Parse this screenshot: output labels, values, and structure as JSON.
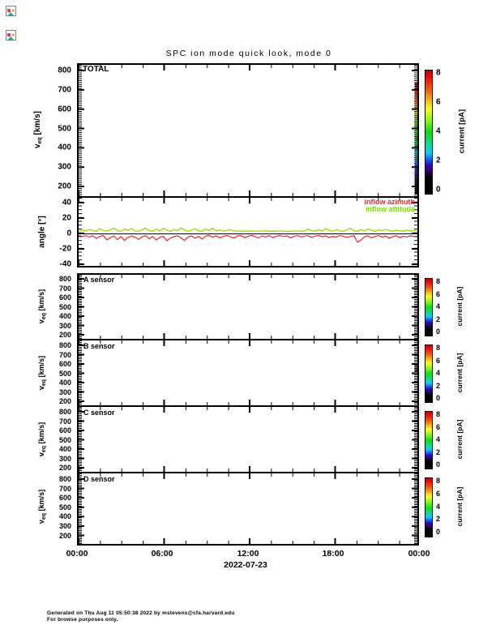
{
  "title": "SPC ion mode quick look, mode 0",
  "corner_icons": [
    "broken-image",
    "broken-image"
  ],
  "xaxis": {
    "tick_labels": [
      "00:00",
      "06:00",
      "12:00",
      "18:00",
      "00:00"
    ],
    "date_label": "2022-07-23"
  },
  "yaxis_velocity": {
    "label_pre": "v",
    "label_sub": "eq",
    "label_post": " [km/s]",
    "ticks": [
      "800",
      "700",
      "600",
      "500",
      "400",
      "300",
      "200"
    ]
  },
  "angle_axis": {
    "label": "angle [°]",
    "ticks": [
      "40",
      "20",
      "0",
      "-20",
      "-40"
    ]
  },
  "colorbar": {
    "label": "current [pA]",
    "ticks": [
      "8",
      "6",
      "4",
      "2",
      "0"
    ],
    "min": 0,
    "max": 8,
    "gradient_top_to_bottom": [
      {
        "pct": 0,
        "color": "#cc0000"
      },
      {
        "pct": 5,
        "color": "#ff0000"
      },
      {
        "pct": 17,
        "color": "#ff6600"
      },
      {
        "pct": 26,
        "color": "#ffcc00"
      },
      {
        "pct": 31,
        "color": "#ffff00"
      },
      {
        "pct": 40,
        "color": "#88ff00"
      },
      {
        "pct": 50,
        "color": "#00e400"
      },
      {
        "pct": 62,
        "color": "#00ddbb"
      },
      {
        "pct": 67,
        "color": "#00ccff"
      },
      {
        "pct": 72,
        "color": "#0066ff"
      },
      {
        "pct": 77,
        "color": "#3300cc"
      },
      {
        "pct": 82,
        "color": "#330066"
      },
      {
        "pct": 87,
        "color": "#000000"
      },
      {
        "pct": 100,
        "color": "#000000"
      }
    ]
  },
  "panels": {
    "total": {
      "label": "TOTAL"
    },
    "angle": {
      "legend": [
        {
          "label": "inflow azimuth",
          "color": "#ff2222"
        },
        {
          "label": "inflow attitude",
          "color": "#7ddf00"
        }
      ]
    },
    "sensors": [
      {
        "label": "A sensor"
      },
      {
        "label": "B sensor"
      },
      {
        "label": "C sensor"
      },
      {
        "label": "D sensor"
      }
    ]
  },
  "footer": {
    "line1": "Generated on Thu Aug 11 05:50:38 2022 by mstevens@cfa.harvard.edu",
    "line2": "For browse purposes only."
  },
  "chart_data": [
    {
      "id": "total",
      "type": "heatmap",
      "panel_label": "TOTAL",
      "ylabel": "veq [km/s]",
      "ylim": [
        150,
        850
      ],
      "x_range": [
        "00:00",
        "24:00"
      ],
      "color_variable": "current [pA]",
      "color_range": [
        0,
        8
      ],
      "values": [],
      "last_sample_edge_column": true
    },
    {
      "id": "angle",
      "type": "line",
      "ylabel": "angle [°]",
      "ylim": [
        -45,
        45
      ],
      "x_start_hours": 0,
      "x_step_hours": 0.25,
      "zero_line": true,
      "legend_position": "top-right",
      "series": [
        {
          "name": "inflow azimuth",
          "color": "#ff2222",
          "values": [
            -2.6,
            -3.9,
            -2.8,
            -4.6,
            -3.1,
            -6.4,
            -3.9,
            -2.7,
            -8.3,
            -5.4,
            -3.3,
            -7.9,
            -4.1,
            -9.2,
            -4.9,
            -3.5,
            -4.7,
            -7.6,
            -4.3,
            -2.8,
            -6.9,
            -4.0,
            -8.4,
            -5.1,
            -3.7,
            -9.5,
            -6.0,
            -4.2,
            -3.0,
            -5.8,
            -8.9,
            -4.5,
            -3.2,
            -6.1,
            -3.9,
            -7.2,
            -3.4,
            -2.5,
            -4.8,
            -3.1,
            -5.6,
            -3.8,
            -2.6,
            -4.3,
            -6.1,
            -3.3,
            -2.7,
            -5.0,
            -3.6,
            -2.4,
            -4.1,
            -5.9,
            -3.0,
            -4.5,
            -2.8,
            -5.2,
            -3.7,
            -2.5,
            -4.0,
            -3.2,
            -5.7,
            -3.9,
            -2.7,
            -4.6,
            -3.4,
            -2.8,
            -4.9,
            -3.5,
            -2.6,
            -4.2,
            -3.0,
            -5.3,
            -3.8,
            -4.7,
            -2.7,
            -3.6,
            -5.1,
            -4.0,
            -2.8,
            -11.3,
            -8.6,
            -4.3,
            -3.1,
            -5.6,
            -3.9,
            -2.7,
            -4.8,
            -3.4,
            -6.2,
            -4.1,
            -2.9,
            -5.4,
            -3.7,
            -4.5,
            -3.1,
            -3.9,
            -3.4
          ]
        },
        {
          "name": "inflow attitude",
          "color": "#7ddf00",
          "values": [
            2.9,
            4.2,
            3.1,
            5.3,
            3.6,
            2.7,
            6.2,
            3.9,
            3.0,
            4.7,
            7.1,
            3.5,
            2.8,
            5.9,
            4.0,
            6.4,
            3.2,
            2.9,
            5.0,
            7.0,
            3.7,
            3.0,
            5.5,
            3.3,
            6.7,
            4.1,
            2.8,
            5.2,
            3.6,
            7.3,
            4.3,
            3.0,
            3.9,
            6.1,
            3.4,
            2.9,
            5.7,
            3.8,
            6.8,
            3.1,
            4.6,
            2.8,
            4.0,
            5.1,
            2.9,
            3.5,
            2.7,
            3.2,
            3.0,
            3.6,
            2.8,
            3.3,
            2.9,
            3.7,
            2.6,
            3.1,
            2.8,
            3.4,
            3.0,
            2.7,
            3.2,
            2.9,
            3.5,
            2.8,
            3.1,
            5.9,
            3.6,
            2.9,
            4.8,
            3.3,
            6.2,
            3.9,
            3.0,
            5.0,
            3.5,
            2.8,
            4.5,
            6.5,
            3.7,
            2.9,
            5.0,
            3.4,
            5.8,
            4.1,
            3.0,
            4.6,
            3.5,
            5.3,
            3.9,
            2.8,
            4.2,
            3.6,
            3.0,
            4.4,
            3.3,
            3.9,
            3.1
          ]
        }
      ]
    },
    {
      "id": "a_sensor",
      "type": "heatmap",
      "panel_label": "A sensor",
      "ylim": [
        150,
        850
      ],
      "color_range": [
        0,
        8
      ],
      "values": []
    },
    {
      "id": "b_sensor",
      "type": "heatmap",
      "panel_label": "B sensor",
      "ylim": [
        150,
        850
      ],
      "color_range": [
        0,
        8
      ],
      "values": [],
      "edge_artifact": {
        "colors": [
          "#00e0ff",
          "#1133cc"
        ]
      }
    },
    {
      "id": "c_sensor",
      "type": "heatmap",
      "panel_label": "C sensor",
      "ylim": [
        150,
        850
      ],
      "color_range": [
        0,
        8
      ],
      "values": []
    },
    {
      "id": "d_sensor",
      "type": "heatmap",
      "panel_label": "D sensor",
      "ylim": [
        150,
        850
      ],
      "color_range": [
        0,
        8
      ],
      "values": []
    }
  ]
}
